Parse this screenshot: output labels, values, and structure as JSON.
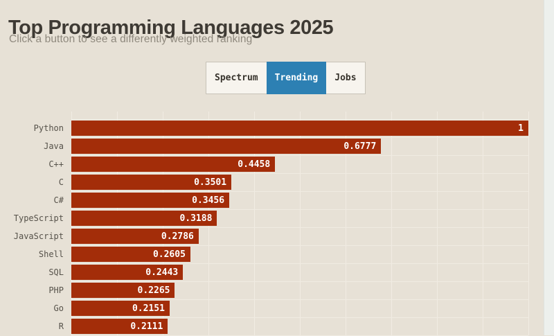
{
  "page": {
    "title": "Top Programming Languages 2025",
    "subtitle": "Click a button to see a differently weighted ranking"
  },
  "toolbar": {
    "buttons": [
      {
        "label": "Spectrum",
        "active": false
      },
      {
        "label": "Trending",
        "active": true
      },
      {
        "label": "Jobs",
        "active": false
      }
    ]
  },
  "colors": {
    "background": "#e7e1d6",
    "bar": "#a32d09",
    "active_button": "#2d80b3",
    "button_group_background": "#f7f4ee",
    "gridline": "#f0ebe2",
    "title_text": "#3e3a34",
    "subtitle_text": "#8f897e",
    "category_label_text": "#56524a",
    "value_label_text": "#ffffff"
  },
  "chart_data": {
    "type": "bar",
    "orientation": "horizontal",
    "title": "Top Programming Languages 2025",
    "subtitle": "Click a button to see a differently weighted ranking",
    "selected_weighting": "Trending",
    "categories": [
      "Python",
      "Java",
      "C++",
      "C",
      "C#",
      "TypeScript",
      "JavaScript",
      "Shell",
      "SQL",
      "PHP",
      "Go",
      "R"
    ],
    "values": [
      1,
      0.6777,
      0.4458,
      0.3501,
      0.3456,
      0.3188,
      0.2786,
      0.2605,
      0.2443,
      0.2265,
      0.2151,
      0.2111
    ],
    "value_labels": [
      "1",
      "0.6777",
      "0.4458",
      "0.3501",
      "0.3456",
      "0.3188",
      "0.2786",
      "0.2605",
      "0.2443",
      "0.2265",
      "0.2151",
      "0.2111"
    ],
    "xlabel": "",
    "ylabel": "",
    "xlim": [
      0,
      1
    ],
    "gridline_interval": 0.1,
    "grid": true,
    "legend": false
  }
}
